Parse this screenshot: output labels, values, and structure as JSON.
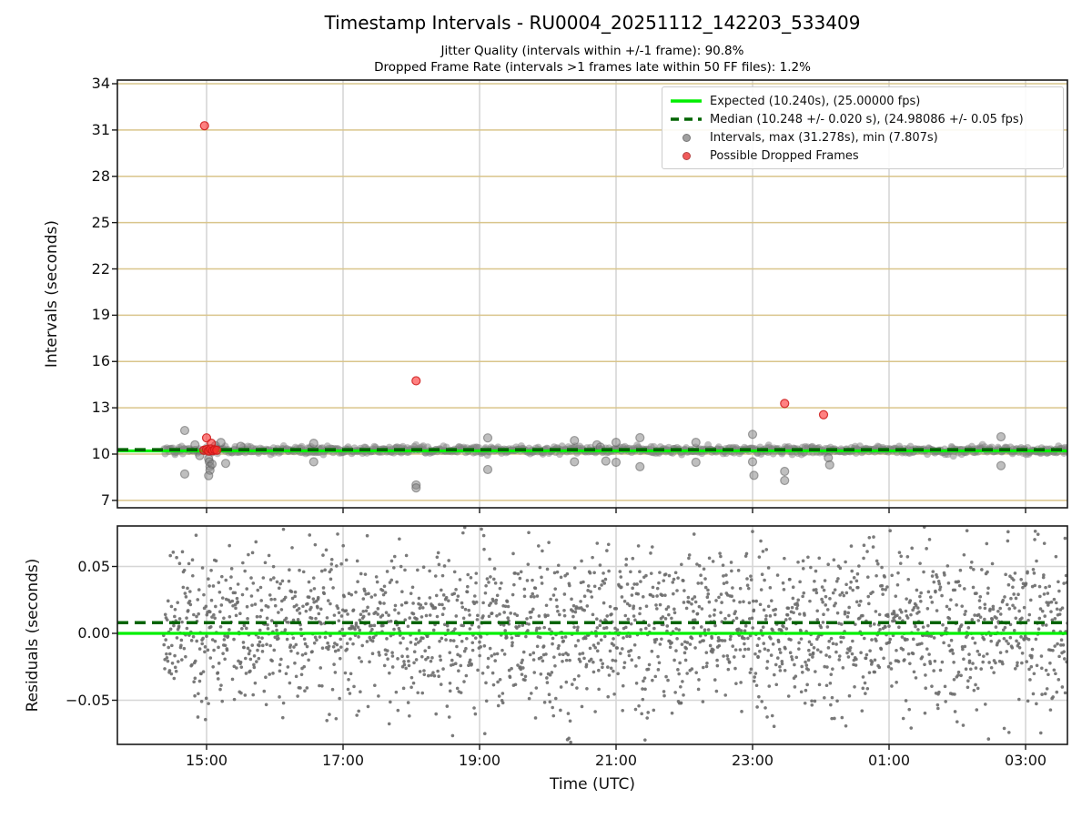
{
  "figure": {
    "title": "Timestamp Intervals - RU0004_20251112_142203_533409",
    "subtitle1": "Jitter Quality (intervals within +/-1 frame): 90.8%",
    "subtitle2": "Dropped Frame Rate (intervals >1 frames late within 50 FF files): 1.2%",
    "xlabel": "Time (UTC)"
  },
  "legend": {
    "items": [
      {
        "label": "Expected (10.240s), (25.00000 fps)",
        "marker": "solid-line",
        "color": "#00ee00"
      },
      {
        "label": "Median (10.248 +/- 0.020 s), (24.98086 +/- 0.05 fps)",
        "marker": "dashed-line",
        "color": "#006400"
      },
      {
        "label": "Intervals, max (31.278s), min (7.807s)",
        "marker": "dot",
        "color": "#a0a0a0"
      },
      {
        "label": "Possible Dropped Frames",
        "marker": "dot",
        "color": "#f05a5a"
      }
    ]
  },
  "colors": {
    "expected": "#00f000",
    "median": "#006400",
    "intervals_fill": "rgba(128,128,128,0.5)",
    "intervals_edge": "rgba(95,95,95,0.55)",
    "dropped_fill": "rgba(255,45,45,0.6)",
    "dropped_edge": "rgba(205,25,25,0.85)",
    "residual_fill": "rgba(108,108,108,0.9)",
    "grid_h_top": "#d9c58b",
    "grid_v": "#cfcfcf",
    "grid_h_bottom": "#d6d6d6",
    "spine": "#1a1a1a"
  },
  "xticks": [
    {
      "t": 15,
      "label": "15:00"
    },
    {
      "t": 17,
      "label": "17:00"
    },
    {
      "t": 19,
      "label": "19:00"
    },
    {
      "t": 21,
      "label": "21:00"
    },
    {
      "t": 23,
      "label": "23:00"
    },
    {
      "t": 25,
      "label": "01:00"
    },
    {
      "t": 27,
      "label": "03:00"
    }
  ],
  "chart_data": [
    {
      "name": "intervals",
      "type": "scatter",
      "ylabel": "Intervals (seconds)",
      "yticks": [
        34,
        31,
        28,
        25,
        22,
        19,
        16,
        13,
        10,
        7
      ],
      "ylim": [
        6.5,
        34.3
      ],
      "xlim_hours": [
        13.69,
        27.61
      ],
      "expected_interval_s": 10.24,
      "expected_fps": "25.00000",
      "median_interval_s": 10.248,
      "median_pm_s": 0.02,
      "median_fps": "24.98086",
      "median_fps_pm": 0.05,
      "max_interval_s": 31.278,
      "min_interval_s": 7.807,
      "band": {
        "t_start": 14.37,
        "t_end": 27.62,
        "center": 10.25,
        "sd": 0.12,
        "count": 950,
        "radius": 4
      },
      "outliers": [
        [
          14.68,
          11.53
        ],
        [
          14.68,
          8.71
        ],
        [
          14.83,
          10.6
        ],
        [
          14.9,
          9.9
        ],
        [
          15.03,
          9.7
        ],
        [
          15.04,
          9.5
        ],
        [
          15.05,
          9.2
        ],
        [
          15.05,
          8.95
        ],
        [
          15.03,
          8.6
        ],
        [
          15.08,
          9.35
        ],
        [
          15.13,
          10.55
        ],
        [
          15.21,
          10.75
        ],
        [
          15.28,
          9.4
        ],
        [
          15.5,
          10.5
        ],
        [
          16.57,
          10.7
        ],
        [
          16.57,
          9.5
        ],
        [
          18.07,
          8.0
        ],
        [
          18.07,
          7.81
        ],
        [
          19.12,
          11.05
        ],
        [
          19.12,
          9.0
        ],
        [
          20.39,
          10.88
        ],
        [
          20.39,
          9.5
        ],
        [
          20.72,
          10.6
        ],
        [
          20.77,
          10.45
        ],
        [
          20.85,
          9.55
        ],
        [
          21.0,
          10.76
        ],
        [
          21.0,
          9.47
        ],
        [
          21.35,
          11.06
        ],
        [
          21.35,
          9.18
        ],
        [
          22.17,
          10.76
        ],
        [
          22.17,
          9.47
        ],
        [
          23.0,
          11.28
        ],
        [
          23.0,
          9.5
        ],
        [
          23.02,
          8.62
        ],
        [
          23.47,
          8.88
        ],
        [
          23.47,
          8.29
        ],
        [
          24.11,
          9.76
        ],
        [
          24.13,
          9.3
        ],
        [
          26.64,
          11.12
        ],
        [
          26.64,
          9.25
        ]
      ],
      "dropped_frames": [
        [
          14.97,
          31.278
        ],
        [
          15.0,
          11.05
        ],
        [
          15.07,
          10.7
        ],
        [
          14.96,
          10.25
        ],
        [
          15.0,
          10.3
        ],
        [
          15.03,
          10.2
        ],
        [
          15.06,
          10.33
        ],
        [
          15.09,
          10.22
        ],
        [
          15.12,
          10.28
        ],
        [
          15.15,
          10.25
        ],
        [
          18.07,
          14.75
        ],
        [
          23.47,
          13.28
        ],
        [
          24.04,
          12.55
        ]
      ]
    },
    {
      "name": "residuals",
      "type": "scatter",
      "ylabel": "Residuals (seconds)",
      "yticks": [
        0.05,
        0,
        -0.05
      ],
      "ytick_labels": [
        "0.05",
        "0.00",
        "−0.05"
      ],
      "ylim": [
        -0.083,
        0.08
      ],
      "expected_residual_s": 0.0,
      "median_residual_s": 0.008,
      "scatter": {
        "t_start": 14.37,
        "t_end": 27.62,
        "center": 0.004,
        "sd": 0.028,
        "sd_wide": 0.05,
        "wide_frac": 0.085,
        "count": 2300,
        "clip": 0.0795,
        "radius": 1.8
      }
    }
  ]
}
